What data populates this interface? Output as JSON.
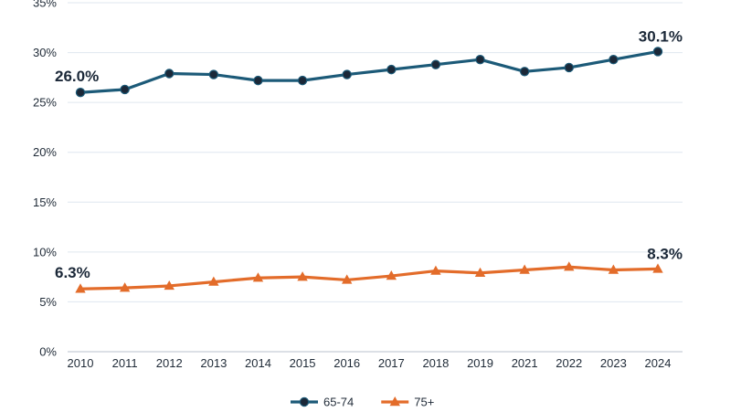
{
  "chart_data": {
    "type": "line",
    "categories": [
      "2010",
      "2011",
      "2012",
      "2013",
      "2014",
      "2015",
      "2016",
      "2017",
      "2018",
      "2019",
      "2021",
      "2022",
      "2023",
      "2024"
    ],
    "ylim": [
      0,
      35
    ],
    "yticks": [
      0,
      5,
      10,
      15,
      20,
      25,
      30,
      35
    ],
    "ytick_labels": [
      "0%",
      "5%",
      "10%",
      "15%",
      "20%",
      "25%",
      "30%",
      "35%"
    ],
    "grid": true,
    "legend_position": "bottom",
    "series": [
      {
        "name": "65-74",
        "color": "#1c5a78",
        "marker": "circle",
        "values": [
          26.0,
          26.3,
          27.9,
          27.8,
          27.2,
          27.2,
          27.8,
          28.3,
          28.8,
          29.3,
          28.1,
          28.5,
          29.3,
          30.1
        ],
        "labels": {
          "first": "26.0%",
          "last": "30.1%"
        }
      },
      {
        "name": "75+",
        "color": "#e36c2a",
        "marker": "triangle",
        "values": [
          6.3,
          6.4,
          6.6,
          7.0,
          7.4,
          7.5,
          7.2,
          7.6,
          8.1,
          7.9,
          8.2,
          8.5,
          8.2,
          8.3
        ],
        "labels": {
          "first": "6.3%",
          "last": "8.3%"
        }
      }
    ]
  }
}
